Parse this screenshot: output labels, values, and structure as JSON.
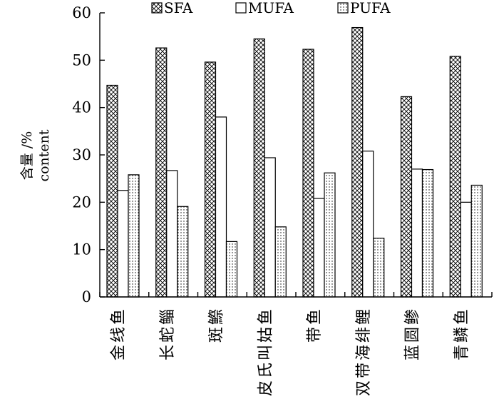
{
  "chart_data": {
    "type": "bar",
    "categories": [
      "金线鱼",
      "长蛇鲻",
      "斑鰶",
      "皮氏叫姑鱼",
      "带鱼",
      "双带海绯鲤",
      "蓝圆鲹",
      "青鳞鱼"
    ],
    "series": [
      {
        "name": "SFA",
        "values": [
          44.7,
          52.6,
          49.6,
          54.5,
          52.3,
          56.9,
          42.3,
          50.8
        ],
        "pattern": "crosshatch"
      },
      {
        "name": "MUFA",
        "values": [
          22.5,
          26.7,
          38.0,
          29.4,
          20.8,
          30.8,
          27.0,
          20.0
        ],
        "pattern": "empty"
      },
      {
        "name": "PUFA",
        "values": [
          25.8,
          19.1,
          11.7,
          14.8,
          26.2,
          12.4,
          26.9,
          23.6
        ],
        "pattern": "dotted"
      }
    ],
    "ylabel": [
      "含量 /%",
      "content"
    ],
    "ylim": [
      0,
      60
    ],
    "yticks": [
      0,
      10,
      20,
      30,
      40,
      50,
      60
    ],
    "legend_position": "top"
  }
}
